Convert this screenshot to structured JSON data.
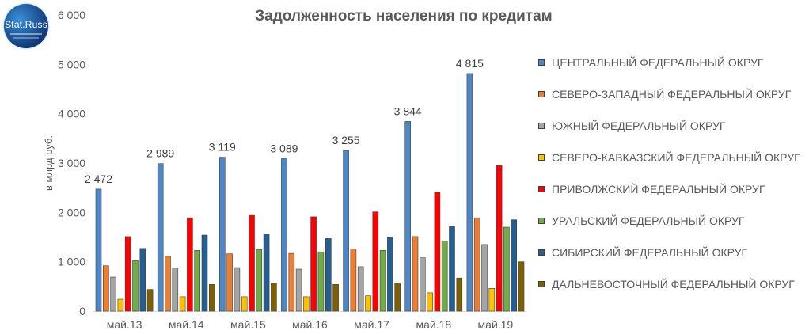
{
  "title": "Задолженность населения по кредитам",
  "logo": {
    "text": "Stat.Russ"
  },
  "chart_data": {
    "type": "bar",
    "title": "Задолженность населения по кредитам",
    "xlabel": "",
    "ylabel": "в млрд руб.",
    "ylim": [
      0,
      6000
    ],
    "yticks": [
      "0",
      "1 000",
      "2 000",
      "3 000",
      "4 000",
      "5 000",
      "6 000"
    ],
    "categories": [
      "май.13",
      "май.14",
      "май.15",
      "май.16",
      "май.17",
      "май.18",
      "май.19"
    ],
    "total_labels": [
      "2 472",
      "2 989",
      "3 119",
      "3 089",
      "3 255",
      "3 844",
      "4 815"
    ],
    "legend_position": "right",
    "series": [
      {
        "name": "ЦЕНТРАЛЬНЫЙ ФЕДЕРАЛЬНЫЙ ОКРУГ",
        "color": "#4f86c6",
        "values": [
          2472,
          2989,
          3119,
          3089,
          3255,
          3844,
          4815
        ]
      },
      {
        "name": "СЕВЕРО-ЗАПАДНЫЙ ФЕДЕРАЛЬНЫЙ ОКРУГ",
        "color": "#ed7d31",
        "values": [
          920,
          1110,
          1160,
          1170,
          1260,
          1510,
          1890
        ]
      },
      {
        "name": "ЮЖНЫЙ ФЕДЕРАЛЬНЫЙ ОКРУГ",
        "color": "#a5a5a5",
        "values": [
          690,
          870,
          880,
          850,
          900,
          1080,
          1350
        ]
      },
      {
        "name": "СЕВЕРО-КАВКАЗСКИЙ ФЕДЕРАЛЬНЫЙ ОКРУГ",
        "color": "#ffc000",
        "values": [
          240,
          290,
          290,
          290,
          310,
          370,
          460
        ]
      },
      {
        "name": "ПРИВОЛЖСКИЙ ФЕДЕРАЛЬНЫЙ ОКРУГ",
        "color": "#ff0000",
        "values": [
          1510,
          1890,
          1940,
          1910,
          2010,
          2410,
          2950
        ]
      },
      {
        "name": "УРАЛЬСКИЙ ФЕДЕРАЛЬНЫЙ ОКРУГ",
        "color": "#70ad47",
        "values": [
          1020,
          1230,
          1250,
          1200,
          1230,
          1420,
          1700
        ]
      },
      {
        "name": "СИБИРСКИЙ ФЕДЕРАЛЬНЫЙ ОКРУГ",
        "color": "#255e91",
        "values": [
          1270,
          1540,
          1550,
          1470,
          1500,
          1710,
          1850
        ]
      },
      {
        "name": "ДАЛЬНЕВОСТОЧНЫЙ ФЕДЕРАЛЬНЫЙ ОКРУГ",
        "color": "#7f6000",
        "values": [
          440,
          540,
          560,
          540,
          570,
          670,
          1000
        ]
      }
    ]
  }
}
